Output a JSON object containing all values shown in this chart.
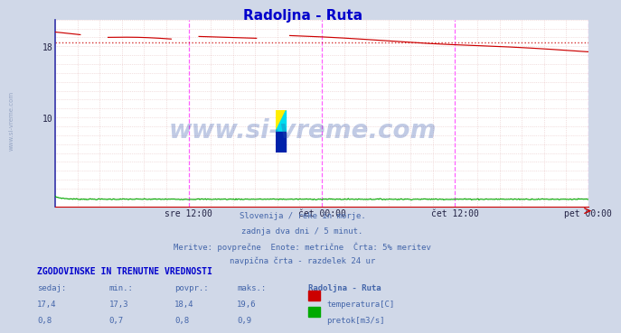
{
  "title": "Radoljna - Ruta",
  "title_color": "#0000cc",
  "bg_color": "#d0d8e8",
  "plot_bg_color": "#ffffff",
  "grid_color": "#ddaaaa",
  "grid_minor_color": "#eedddd",
  "left_spine_color": "#3333aa",
  "bottom_spine_color": "#cc0000",
  "x_tick_labels": [
    "sre 12:00",
    "čet 00:00",
    "čet 12:00",
    "pet 00:00"
  ],
  "x_tick_positions": [
    0.25,
    0.5,
    0.75,
    1.0
  ],
  "ylim": [
    0,
    21
  ],
  "ytick_labels": [
    "10",
    "18"
  ],
  "ytick_values": [
    10,
    18
  ],
  "temp_color": "#cc0000",
  "flow_color": "#00aa00",
  "avg_line_color": "#cc0000",
  "avg_line_value": 18.4,
  "vline_color": "#ff44ff",
  "vline_right_color": "#cc44cc",
  "watermark": "www.si-vreme.com",
  "watermark_color": "#3355aa",
  "footer_lines": [
    "Slovenija / reke in morje.",
    "zadnja dva dni / 5 minut.",
    "Meritve: povprečne  Enote: metrične  Črta: 5% meritev",
    "navpična črta - razdelek 24 ur"
  ],
  "footer_color": "#4466aa",
  "table_header": "ZGODOVINSKE IN TRENUTNE VREDNOSTI",
  "table_header_color": "#0000cc",
  "col_headers": [
    "sedaj:",
    "min.:",
    "povpr.:",
    "maks.:",
    "Radoljna - Ruta"
  ],
  "temp_row": [
    "17,4",
    "17,3",
    "18,4",
    "19,6"
  ],
  "flow_row": [
    "0,8",
    "0,7",
    "0,8",
    "0,9"
  ],
  "temp_label": "temperatura[C]",
  "flow_label": "pretok[m3/s]",
  "table_color": "#4466aa",
  "sidebar_text": "www.si-vreme.com",
  "sidebar_color": "#8899bb"
}
